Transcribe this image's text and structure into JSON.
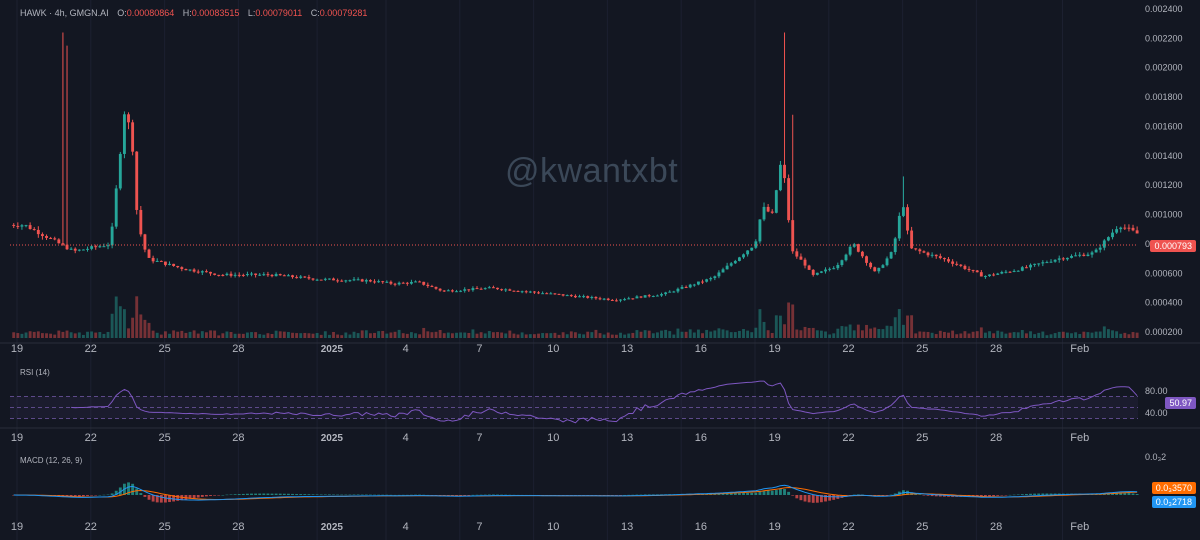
{
  "header": {
    "symbol": "HAWK · 4h, GMGN.AI",
    "o_label": "O:",
    "o_value": "0.00080864",
    "h_label": "H:",
    "h_value": "0.00083515",
    "l_label": "L:",
    "l_value": "0.00079011",
    "c_label": "C:",
    "c_value": "0.00079281"
  },
  "watermark": "@kwantxbt",
  "price_axis": [
    "0.002400",
    "0.002200",
    "0.002000",
    "0.001800",
    "0.001600",
    "0.001400",
    "0.001200",
    "0.001000",
    "0.000800",
    "0.000600",
    "0.000400",
    "0.000200"
  ],
  "time_axis": [
    "19",
    "22",
    "25",
    "28",
    "2025",
    "4",
    "7",
    "10",
    "13",
    "16",
    "19",
    "22",
    "25",
    "28",
    "Feb"
  ],
  "last_price_label": "0.000793",
  "rsi": {
    "label": "RSI (14)",
    "axis": [
      "80.00",
      "40.00"
    ],
    "value_label": "50.97"
  },
  "macd": {
    "label": "MACD (12, 26, 9)",
    "axis_top": "0.0₃2",
    "value_1": "0.0₃3570",
    "value_2": "0.0₃2718"
  },
  "colors": {
    "bg": "#131722",
    "up": "#26a69a",
    "down": "#ef5350",
    "rsi": "#7e57c2",
    "macd": "#2196f3",
    "signal": "#ff6d00",
    "text": "#b2b5be"
  },
  "chart_data": {
    "type": "candlestick",
    "interval": "4h",
    "ylim": [
      0.00016,
      0.00242
    ],
    "last_price": 0.000793,
    "keypoints": [
      {
        "d": -11,
        "p": 0.00093
      },
      {
        "d": -9,
        "p": 0.00075
      },
      {
        "d": -7.5,
        "p": 0.0008
      },
      {
        "d": -6.9,
        "p": 0.00175
      },
      {
        "d": -6.6,
        "p": 0.00145
      },
      {
        "d": -6.4,
        "p": 0.00095
      },
      {
        "d": -6,
        "p": 0.0007
      },
      {
        "d": -4.5,
        "p": 0.00063
      },
      {
        "d": -3,
        "p": 0.00059
      },
      {
        "d": -1,
        "p": 0.00059
      },
      {
        "d": 1,
        "p": 0.00056
      },
      {
        "d": 3,
        "p": 0.00055
      },
      {
        "d": 4,
        "p": 0.00053
      },
      {
        "d": 5,
        "p": 0.00054
      },
      {
        "d": 6,
        "p": 0.00048
      },
      {
        "d": 8,
        "p": 0.0005
      },
      {
        "d": 11,
        "p": 0.00045
      },
      {
        "d": 13,
        "p": 0.00042
      },
      {
        "d": 15,
        "p": 0.00046
      },
      {
        "d": 17,
        "p": 0.00057
      },
      {
        "d": 18.7,
        "p": 0.0008
      },
      {
        "d": 19,
        "p": 0.00105
      },
      {
        "d": 19.4,
        "p": 0.001
      },
      {
        "d": 19.8,
        "p": 0.0014
      },
      {
        "d": 20.2,
        "p": 0.00075
      },
      {
        "d": 20.8,
        "p": 0.00065
      },
      {
        "d": 21,
        "p": 0.00058
      },
      {
        "d": 22,
        "p": 0.00065
      },
      {
        "d": 22.7,
        "p": 0.0008
      },
      {
        "d": 23.6,
        "p": 0.0006
      },
      {
        "d": 24.3,
        "p": 0.00075
      },
      {
        "d": 24.7,
        "p": 0.0011
      },
      {
        "d": 25,
        "p": 0.00077
      },
      {
        "d": 26.5,
        "p": 0.00069
      },
      {
        "d": 28,
        "p": 0.00058
      },
      {
        "d": 29.5,
        "p": 0.00063
      },
      {
        "d": 31,
        "p": 0.0007
      },
      {
        "d": 32.5,
        "p": 0.00074
      },
      {
        "d": 33.5,
        "p": 0.00093
      },
      {
        "d": 34.5,
        "p": 0.00085
      },
      {
        "d": 35.2,
        "p": 0.00079
      }
    ]
  }
}
